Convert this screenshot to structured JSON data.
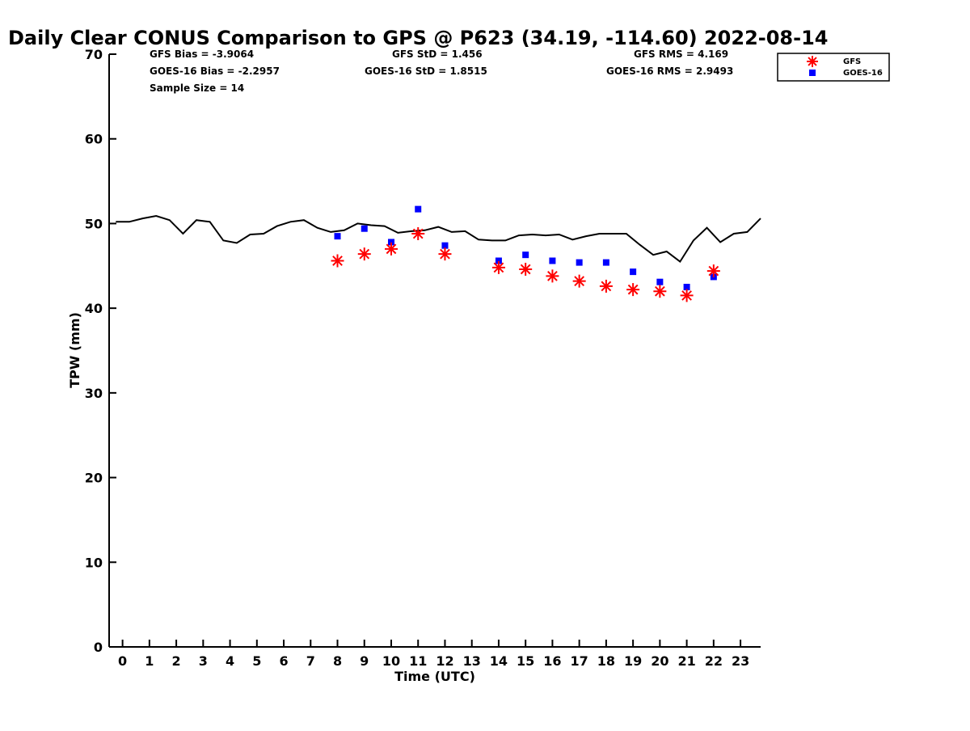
{
  "chart_data": {
    "type": "scatter",
    "title": "Daily Clear CONUS Comparison to GPS @ P623 (34.19, -114.60) 2022-08-14",
    "xlabel": "Time (UTC)",
    "ylabel": "TPW (mm)",
    "xlim": [
      -0.5,
      23.75
    ],
    "ylim": [
      0,
      70
    ],
    "x_ticks": [
      "0",
      "1",
      "2",
      "3",
      "4",
      "5",
      "6",
      "7",
      "8",
      "9",
      "10",
      "11",
      "12",
      "13",
      "14",
      "15",
      "16",
      "17",
      "18",
      "19",
      "20",
      "21",
      "22",
      "23"
    ],
    "y_ticks": [
      "0",
      "10",
      "20",
      "30",
      "40",
      "50",
      "60",
      "70"
    ],
    "grid": false,
    "legend_position": "top-right",
    "stats": {
      "gfs_bias": "GFS Bias = -3.9064",
      "goes_bias": "GOES-16 Bias = -2.2957",
      "sample_size": "Sample Size = 14",
      "gfs_std": "GFS StD = 1.456",
      "goes_std": "GOES-16 StD = 1.8515",
      "gfs_rms": "GFS RMS = 4.169",
      "goes_rms": "GOES-16 RMS = 2.9493"
    },
    "gps_line": {
      "color": "#000000",
      "x": [
        -0.25,
        0.25,
        0.75,
        1.25,
        1.75,
        2.25,
        2.75,
        3.25,
        3.75,
        4.25,
        4.75,
        5.25,
        5.75,
        6.25,
        6.75,
        7.25,
        7.75,
        8.25,
        8.75,
        9.25,
        9.75,
        10.25,
        10.75,
        11.25,
        11.75,
        12.25,
        12.75,
        13.25,
        13.75,
        14.25,
        14.75,
        15.25,
        15.75,
        16.25,
        16.75,
        17.25,
        17.75,
        18.25,
        18.75,
        19.25,
        19.75,
        20.25,
        20.75,
        21.25,
        21.75,
        22.25,
        22.75,
        23.25,
        23.75
      ],
      "y": [
        50.2,
        50.2,
        50.6,
        50.9,
        50.4,
        48.8,
        50.4,
        50.2,
        48.0,
        47.7,
        48.7,
        48.8,
        49.7,
        50.2,
        50.4,
        49.5,
        49.0,
        49.2,
        50.0,
        49.8,
        49.7,
        48.9,
        49.1,
        49.2,
        49.6,
        49.0,
        49.1,
        48.1,
        48.0,
        48.0,
        48.6,
        48.7,
        48.6,
        48.7,
        48.1,
        48.5,
        48.8,
        48.8,
        48.8,
        47.5,
        46.3,
        46.7,
        45.5,
        48.0,
        49.5,
        47.8,
        48.8,
        49.0,
        50.6
      ]
    },
    "series": [
      {
        "name": "GFS",
        "marker": "asterisk",
        "color": "#ff0000",
        "x": [
          8,
          9,
          10,
          11,
          12,
          14,
          15,
          16,
          17,
          18,
          19,
          20,
          21,
          22
        ],
        "y": [
          45.6,
          46.4,
          47.0,
          48.8,
          46.4,
          44.8,
          44.6,
          43.8,
          43.2,
          42.6,
          42.2,
          42.0,
          41.5,
          44.4
        ]
      },
      {
        "name": "GOES-16",
        "marker": "square",
        "color": "#0000ff",
        "x": [
          8,
          9,
          10,
          11,
          12,
          14,
          15,
          16,
          17,
          18,
          19,
          20,
          21,
          22
        ],
        "y": [
          48.5,
          49.4,
          47.8,
          51.7,
          47.4,
          45.6,
          46.3,
          45.6,
          45.4,
          45.4,
          44.3,
          43.1,
          42.5,
          43.7
        ]
      }
    ]
  }
}
